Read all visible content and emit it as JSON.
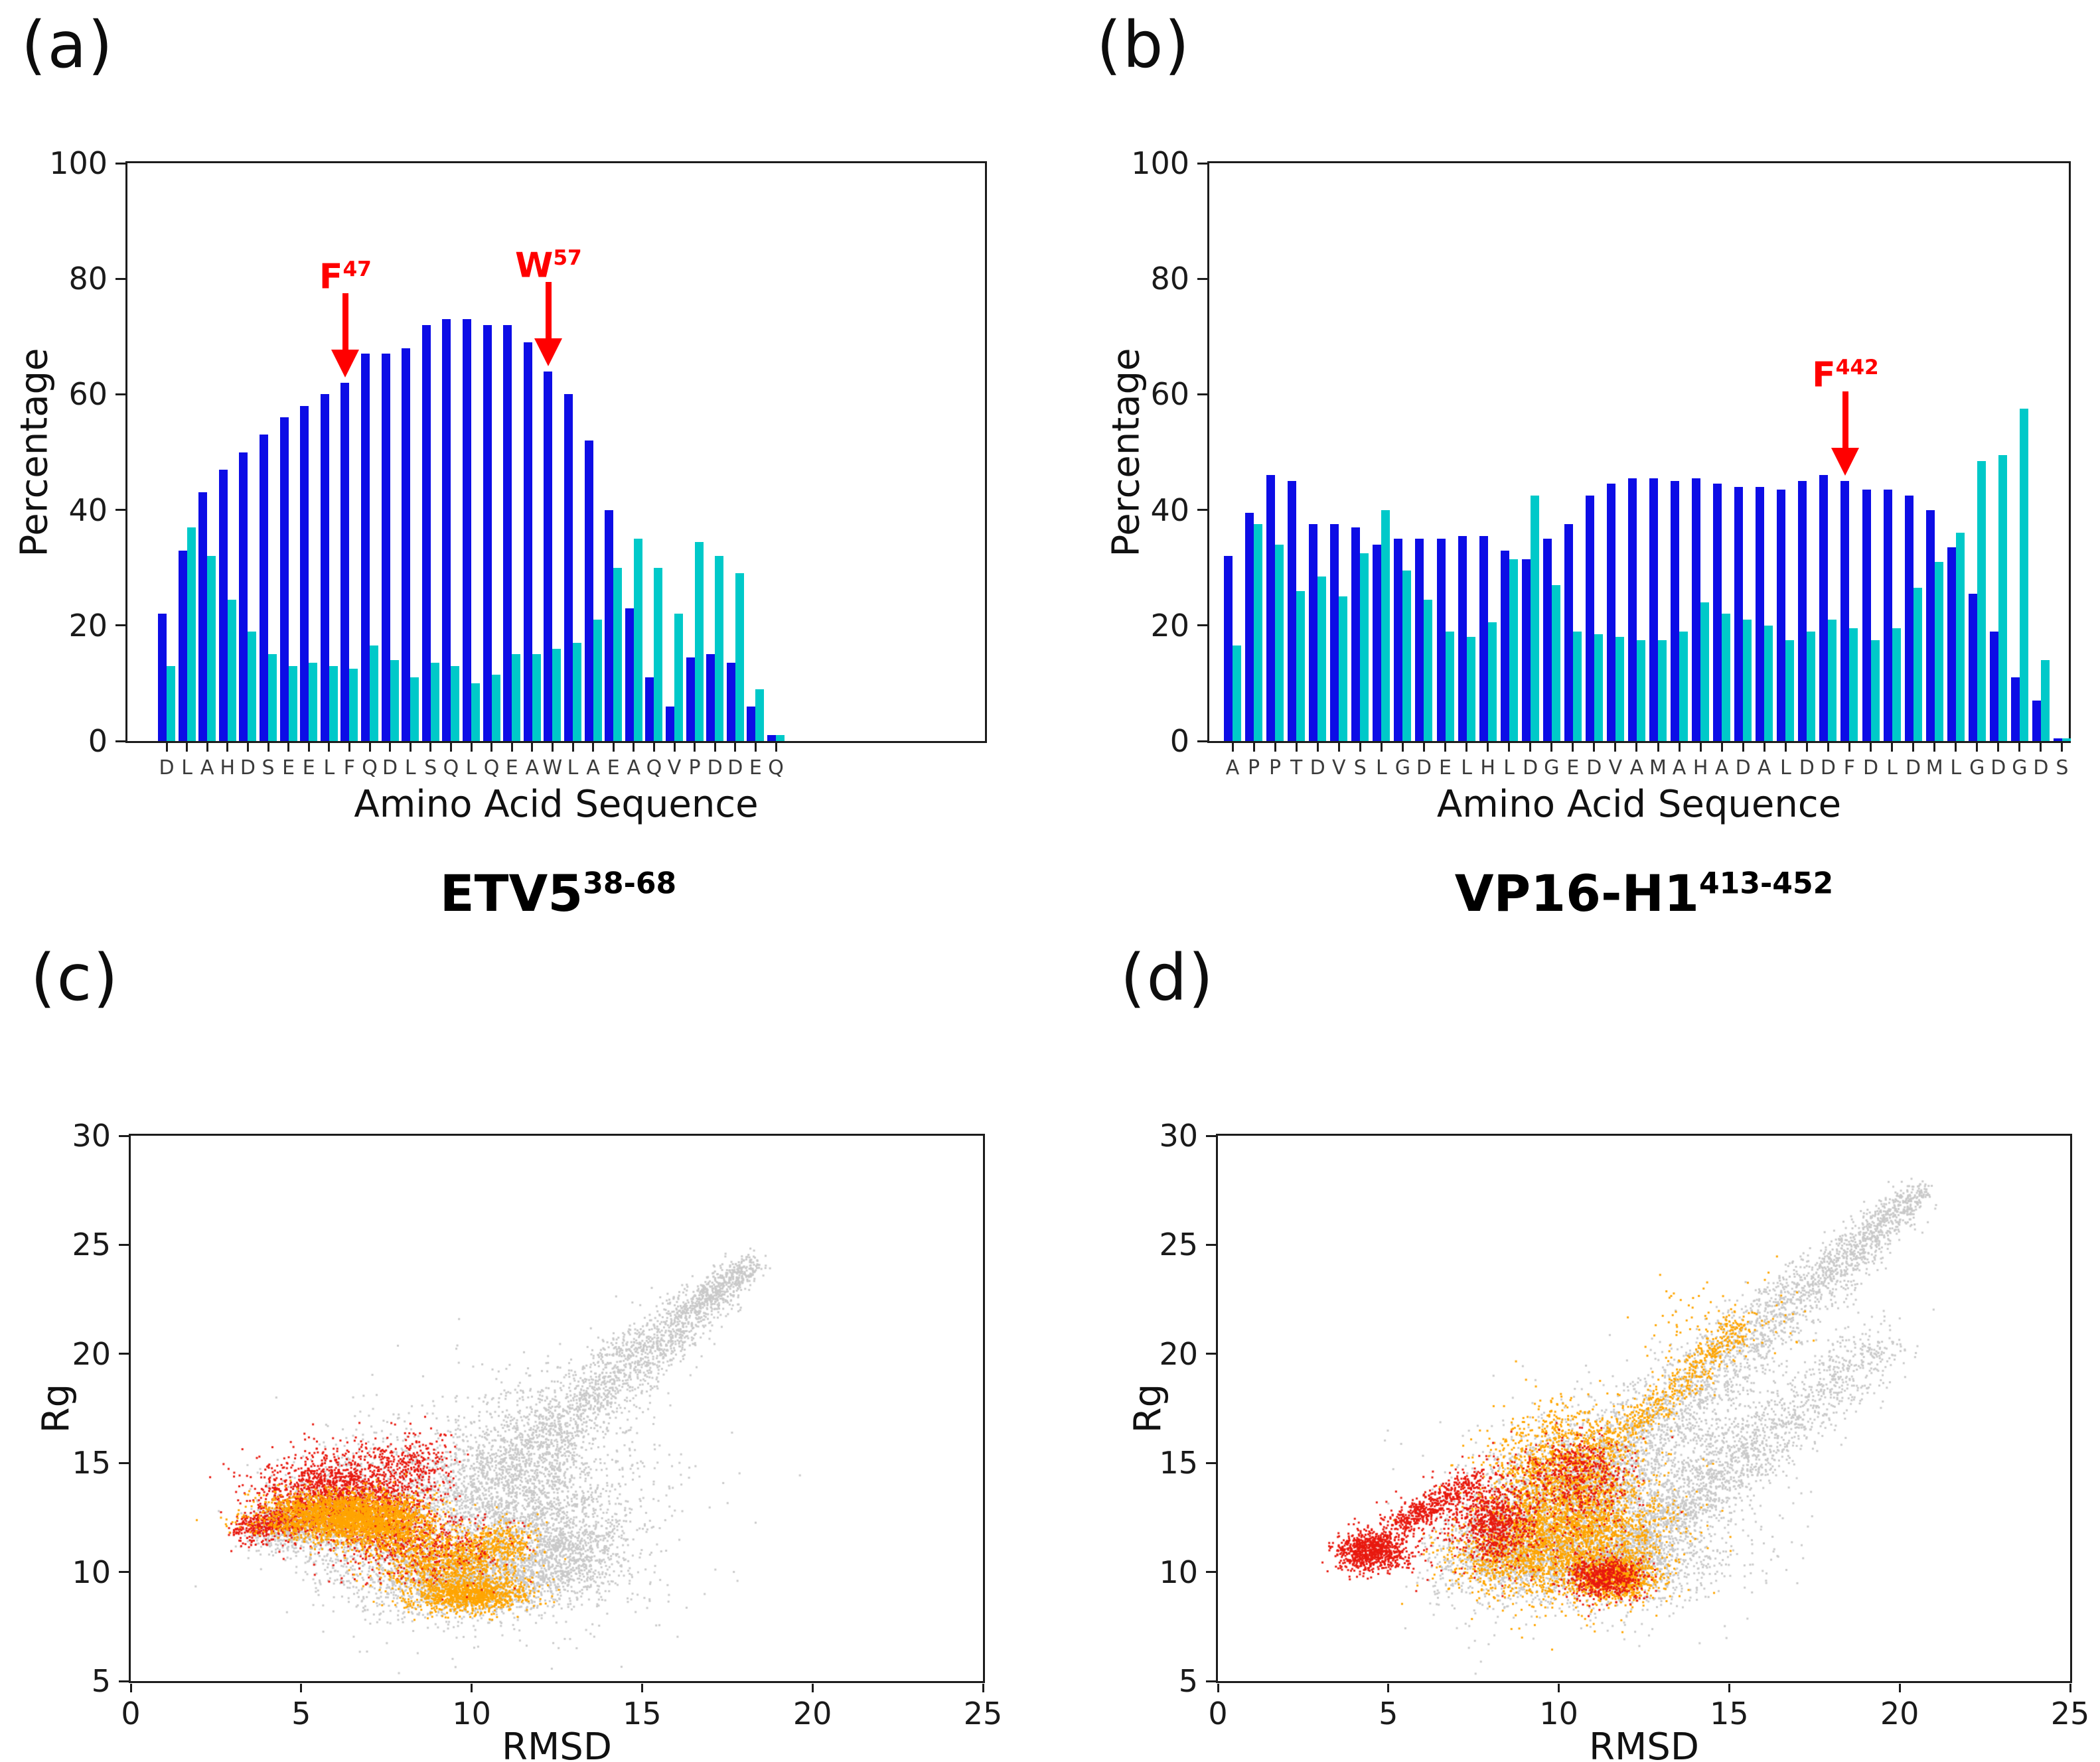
{
  "figure_background": "#ffffff",
  "annotation_color": "#ff0000",
  "chart_data": [
    {
      "type": "bar",
      "panel_label": "(a)",
      "title": {
        "base": "ETV5",
        "sup": "38-68"
      },
      "ylabel": "Percentage",
      "xlabel": "Amino Acid Sequence",
      "ylim": [
        0,
        100
      ],
      "yticks": [
        0,
        20,
        40,
        60,
        80,
        100
      ],
      "grid": false,
      "legend": "none",
      "categories": [
        "D",
        "L",
        "A",
        "H",
        "D",
        "S",
        "E",
        "E",
        "L",
        "F",
        "Q",
        "D",
        "L",
        "S",
        "Q",
        "L",
        "Q",
        "E",
        "A",
        "W",
        "L",
        "A",
        "E",
        "A",
        "Q",
        "V",
        "P",
        "D",
        "D",
        "E",
        "Q"
      ],
      "series": [
        {
          "name": "blue",
          "color": "#0D0DE6",
          "values": [
            22,
            33,
            43,
            47,
            50,
            53,
            56,
            58,
            60,
            62,
            67,
            67,
            68,
            72,
            73,
            73,
            72,
            72,
            69,
            64,
            60,
            52,
            40,
            23,
            11,
            6,
            14.5,
            15,
            13.5,
            6,
            1
          ]
        },
        {
          "name": "cyan",
          "color": "#00C9C9",
          "values": [
            13,
            37,
            32,
            24.5,
            19,
            15,
            13,
            13.5,
            13,
            12.5,
            16.5,
            14,
            11,
            13.5,
            13,
            10,
            11.5,
            15,
            15,
            16,
            17,
            21,
            30,
            35,
            30,
            22,
            34.5,
            32,
            29,
            9,
            1
          ]
        }
      ],
      "annotations": [
        {
          "index": 9,
          "base": "F",
          "sup": "47"
        },
        {
          "index": 19,
          "base": "W",
          "sup": "57"
        }
      ]
    },
    {
      "type": "bar",
      "panel_label": "(b)",
      "title": {
        "base": "VP16-H1",
        "sup": "413-452"
      },
      "ylabel": "Percentage",
      "xlabel": "Amino Acid Sequence",
      "ylim": [
        0,
        100
      ],
      "yticks": [
        0,
        20,
        40,
        60,
        80,
        100
      ],
      "grid": false,
      "legend": "none",
      "categories": [
        "A",
        "P",
        "P",
        "T",
        "D",
        "V",
        "S",
        "L",
        "G",
        "D",
        "E",
        "L",
        "H",
        "L",
        "D",
        "G",
        "E",
        "D",
        "V",
        "A",
        "M",
        "A",
        "H",
        "A",
        "D",
        "A",
        "L",
        "D",
        "D",
        "F",
        "D",
        "L",
        "D",
        "M",
        "L",
        "G",
        "D",
        "G",
        "D",
        "S"
      ],
      "series": [
        {
          "name": "blue",
          "color": "#0D0DE6",
          "values": [
            32,
            39.5,
            46,
            45,
            37.5,
            37.5,
            37,
            34,
            35,
            35,
            35,
            35.5,
            35.5,
            33,
            31.5,
            35,
            37.5,
            42.5,
            44.5,
            45.5,
            45.5,
            45,
            45.5,
            44.5,
            44,
            44,
            43.5,
            45,
            46,
            45,
            43.5,
            43.5,
            42.5,
            40,
            33.5,
            25.5,
            19,
            11,
            7,
            0.5
          ]
        },
        {
          "name": "cyan",
          "color": "#00C9C9",
          "values": [
            16.5,
            37.5,
            34,
            26,
            28.5,
            25,
            32.5,
            40,
            29.5,
            24.5,
            19,
            18,
            20.5,
            31.5,
            42.5,
            27,
            19,
            18.5,
            18,
            17.5,
            17.5,
            19,
            24,
            22,
            21,
            20,
            17.5,
            19,
            21,
            19.5,
            17.5,
            19.5,
            26.5,
            31,
            36,
            48.5,
            49.5,
            57.5,
            14,
            0.5
          ]
        }
      ],
      "annotations": [
        {
          "index": 29,
          "base": "F",
          "sup": "442"
        }
      ]
    },
    {
      "type": "scatter",
      "panel_label": "(c)",
      "xlabel": "RMSD",
      "ylabel": "Rg",
      "xlim": [
        0,
        25
      ],
      "ylim": [
        5,
        30
      ],
      "xticks": [
        0,
        5,
        10,
        15,
        20,
        25
      ],
      "yticks": [
        5,
        10,
        15,
        20,
        25,
        30
      ],
      "grid": false,
      "point_size": 3,
      "series": [
        {
          "name": "gray",
          "color": "#C9C9C9",
          "clusters": [
            {
              "kind": "line",
              "n": 3000,
              "x1": 4.0,
              "y1": 12.0,
              "x2": 12.5,
              "y2": 13.3,
              "w1": 0.8,
              "w2": 6.2
            },
            {
              "kind": "gauss",
              "n": 1600,
              "cx": 9.8,
              "cy": 9.7,
              "sx": 1.6,
              "sy": 0.9
            },
            {
              "kind": "line",
              "n": 2600,
              "x1": 9.5,
              "y1": 13.0,
              "x2": 18.2,
              "y2": 24.2,
              "w1": 2.4,
              "w2": 0.5
            },
            {
              "kind": "gauss",
              "n": 1000,
              "cx": 12.0,
              "cy": 12.5,
              "sx": 1.2,
              "sy": 1.8
            },
            {
              "kind": "gauss",
              "n": 500,
              "cx": 12.9,
              "cy": 10.9,
              "sx": 0.9,
              "sy": 0.9
            }
          ]
        },
        {
          "name": "red",
          "color": "#E8190F",
          "clusters": [
            {
              "kind": "gauss",
              "n": 1400,
              "cx": 6.0,
              "cy": 13.7,
              "sx": 1.15,
              "sy": 0.95
            },
            {
              "kind": "line",
              "n": 450,
              "x1": 3.2,
              "y1": 11.9,
              "x2": 5.0,
              "y2": 12.6,
              "w1": 0.5,
              "w2": 0.9
            },
            {
              "kind": "gauss",
              "n": 450,
              "cx": 7.4,
              "cy": 12.3,
              "sx": 0.8,
              "sy": 1.0
            },
            {
              "kind": "gauss",
              "n": 280,
              "cx": 8.2,
              "cy": 14.8,
              "sx": 0.6,
              "sy": 0.8
            },
            {
              "kind": "gauss",
              "n": 220,
              "cx": 8.9,
              "cy": 11.2,
              "sx": 0.9,
              "sy": 0.8
            }
          ]
        },
        {
          "name": "orange",
          "color": "#FFA500",
          "clusters": [
            {
              "kind": "gauss",
              "n": 2200,
              "cx": 6.2,
              "cy": 12.6,
              "sx": 1.15,
              "sy": 0.55
            },
            {
              "kind": "gauss",
              "n": 500,
              "cx": 7.5,
              "cy": 12.0,
              "sx": 0.7,
              "sy": 0.6
            },
            {
              "kind": "gauss",
              "n": 900,
              "cx": 9.3,
              "cy": 10.5,
              "sx": 1.0,
              "sy": 0.75
            },
            {
              "kind": "gauss",
              "n": 1000,
              "cx": 9.9,
              "cy": 9.0,
              "sx": 0.85,
              "sy": 0.4
            },
            {
              "kind": "gauss",
              "n": 250,
              "cx": 10.9,
              "cy": 11.4,
              "sx": 0.5,
              "sy": 0.5
            }
          ]
        },
        {
          "name": "red-overlay",
          "color": "#E8190F",
          "clusters": [
            {
              "kind": "gauss",
              "n": 140,
              "cx": 9.2,
              "cy": 11.0,
              "sx": 1.2,
              "sy": 0.9
            }
          ]
        }
      ]
    },
    {
      "type": "scatter",
      "panel_label": "(d)",
      "xlabel": "RMSD",
      "ylabel": "Rg",
      "xlim": [
        0,
        25
      ],
      "ylim": [
        5,
        30
      ],
      "xticks": [
        0,
        5,
        10,
        15,
        20,
        25
      ],
      "yticks": [
        5,
        10,
        15,
        20,
        25,
        30
      ],
      "grid": false,
      "point_size": 3,
      "series": [
        {
          "name": "gray",
          "color": "#C9C9C9",
          "clusters": [
            {
              "kind": "line",
              "n": 3200,
              "x1": 7.5,
              "y1": 9.8,
              "x2": 20.6,
              "y2": 27.5,
              "w1": 2.6,
              "w2": 0.6
            },
            {
              "kind": "line",
              "n": 1400,
              "x1": 11.5,
              "y1": 10.2,
              "x2": 19.5,
              "y2": 20.5,
              "w1": 1.0,
              "w2": 1.4
            },
            {
              "kind": "gauss",
              "n": 2300,
              "cx": 11.2,
              "cy": 13.2,
              "sx": 1.9,
              "sy": 2.0
            },
            {
              "kind": "gauss",
              "n": 1300,
              "cx": 11.0,
              "cy": 10.4,
              "sx": 1.8,
              "sy": 0.9
            },
            {
              "kind": "gauss",
              "n": 500,
              "cx": 8.3,
              "cy": 11.3,
              "sx": 1.0,
              "sy": 1.1
            },
            {
              "kind": "gauss",
              "n": 300,
              "cx": 14.8,
              "cy": 16.2,
              "sx": 1.2,
              "sy": 1.5
            }
          ]
        },
        {
          "name": "orange",
          "color": "#FFA500",
          "clusters": [
            {
              "kind": "gauss",
              "n": 2600,
              "cx": 10.3,
              "cy": 11.9,
              "sx": 1.35,
              "sy": 1.5
            },
            {
              "kind": "gauss",
              "n": 900,
              "cx": 10.1,
              "cy": 15.2,
              "sx": 1.0,
              "sy": 1.2
            },
            {
              "kind": "line",
              "n": 550,
              "x1": 11.3,
              "y1": 15.5,
              "x2": 15.4,
              "y2": 21.4,
              "w1": 0.8,
              "w2": 0.6
            },
            {
              "kind": "gauss",
              "n": 800,
              "cx": 11.6,
              "cy": 9.8,
              "sx": 0.65,
              "sy": 0.5
            },
            {
              "kind": "gauss",
              "n": 420,
              "cx": 8.4,
              "cy": 10.6,
              "sx": 0.9,
              "sy": 0.8
            },
            {
              "kind": "gauss",
              "n": 90,
              "cx": 14.8,
              "cy": 21.6,
              "sx": 1.3,
              "sy": 1.0
            }
          ]
        },
        {
          "name": "red",
          "color": "#E8190F",
          "clusters": [
            {
              "kind": "gauss",
              "n": 850,
              "cx": 4.5,
              "cy": 11.0,
              "sx": 0.55,
              "sy": 0.45
            },
            {
              "kind": "line",
              "n": 420,
              "x1": 5.2,
              "y1": 12.1,
              "x2": 7.6,
              "y2": 14.4,
              "w1": 0.5,
              "w2": 0.5
            },
            {
              "kind": "gauss",
              "n": 650,
              "cx": 8.1,
              "cy": 12.3,
              "sx": 0.55,
              "sy": 0.95
            },
            {
              "kind": "gauss",
              "n": 420,
              "cx": 10.6,
              "cy": 14.6,
              "sx": 0.75,
              "sy": 0.85
            },
            {
              "kind": "gauss",
              "n": 550,
              "cx": 11.3,
              "cy": 9.8,
              "sx": 0.55,
              "sy": 0.5
            },
            {
              "kind": "gauss",
              "n": 260,
              "cx": 9.3,
              "cy": 13.2,
              "sx": 1.6,
              "sy": 1.4
            },
            {
              "kind": "gauss",
              "n": 120,
              "cx": 6.3,
              "cy": 12.8,
              "sx": 0.8,
              "sy": 0.6
            }
          ]
        }
      ]
    }
  ]
}
